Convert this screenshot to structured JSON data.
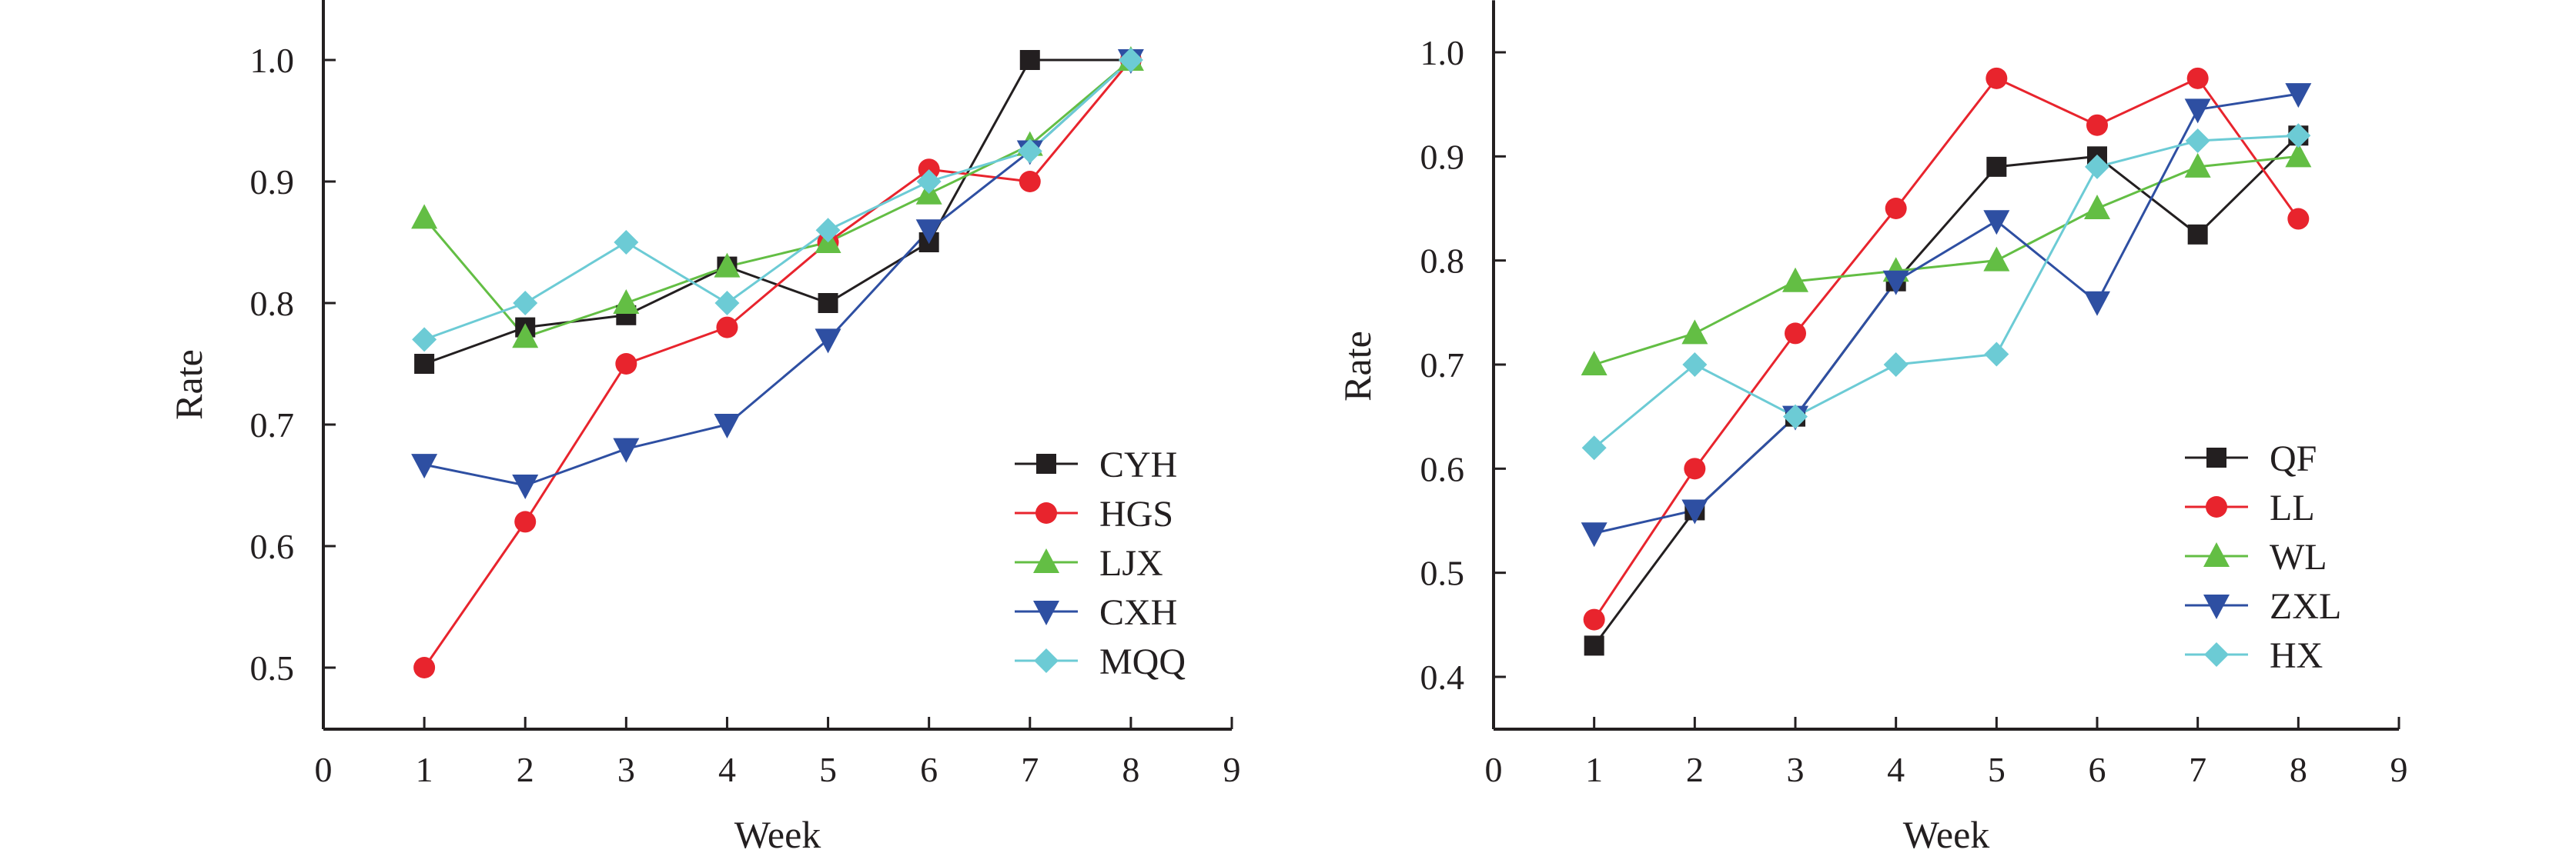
{
  "chart_data": [
    {
      "type": "line",
      "xlabel": "Week",
      "ylabel": "Rate",
      "xlim": [
        0,
        9
      ],
      "ylim": [
        0.45,
        1.05
      ],
      "xticks": [
        0,
        1,
        2,
        3,
        4,
        5,
        6,
        7,
        8,
        9
      ],
      "yticks": [
        0.5,
        0.6,
        0.7,
        0.8,
        0.9,
        1.0
      ],
      "xtick_labels": [
        "0",
        "1",
        "2",
        "3",
        "4",
        "5",
        "6",
        "7",
        "8",
        "9"
      ],
      "ytick_labels": [
        "0.5",
        "0.6",
        "0.7",
        "0.8",
        "0.9",
        "1.0"
      ],
      "grid": false,
      "legend_position": "bottom-right",
      "x": [
        1,
        2,
        3,
        4,
        5,
        6,
        7,
        8
      ],
      "series": [
        {
          "name": "CYH",
          "color": "#231f20",
          "marker": "square",
          "values": [
            0.75,
            0.78,
            0.79,
            0.83,
            0.8,
            0.85,
            1.0,
            1.0
          ]
        },
        {
          "name": "HGS",
          "color": "#e8242d",
          "marker": "circle",
          "values": [
            0.5,
            0.62,
            0.75,
            0.78,
            0.85,
            0.91,
            0.9,
            1.0
          ]
        },
        {
          "name": "LJX",
          "color": "#63be44",
          "marker": "triangle-up",
          "values": [
            0.87,
            0.772,
            0.8,
            0.83,
            0.85,
            0.89,
            0.93,
            1.0
          ]
        },
        {
          "name": "CXH",
          "color": "#2e4fa2",
          "marker": "triangle-down",
          "values": [
            0.667,
            0.65,
            0.68,
            0.7,
            0.77,
            0.86,
            0.925,
            1.0
          ]
        },
        {
          "name": "MQQ",
          "color": "#6ccbd5",
          "marker": "diamond",
          "values": [
            0.77,
            0.8,
            0.85,
            0.8,
            0.86,
            0.9,
            0.925,
            1.0
          ]
        }
      ]
    },
    {
      "type": "line",
      "xlabel": "Week",
      "ylabel": "Rate",
      "xlim": [
        0,
        9
      ],
      "ylim": [
        0.35,
        1.05
      ],
      "xticks": [
        0,
        1,
        2,
        3,
        4,
        5,
        6,
        7,
        8,
        9
      ],
      "yticks": [
        0.4,
        0.5,
        0.6,
        0.7,
        0.8,
        0.9,
        1.0
      ],
      "xtick_labels": [
        "0",
        "1",
        "2",
        "3",
        "4",
        "5",
        "6",
        "7",
        "8",
        "9"
      ],
      "ytick_labels": [
        "0.4",
        "0.5",
        "0.6",
        "0.7",
        "0.8",
        "0.9",
        "1.0"
      ],
      "grid": false,
      "legend_position": "bottom-right",
      "x": [
        1,
        2,
        3,
        4,
        5,
        6,
        7,
        8
      ],
      "series": [
        {
          "name": "QF",
          "color": "#231f20",
          "marker": "square",
          "values": [
            0.43,
            0.56,
            0.65,
            0.78,
            0.89,
            0.9,
            0.825,
            0.92
          ]
        },
        {
          "name": "LL",
          "color": "#e8242d",
          "marker": "circle",
          "values": [
            0.455,
            0.6,
            0.73,
            0.85,
            0.975,
            0.93,
            0.975,
            0.84
          ]
        },
        {
          "name": "WL",
          "color": "#63be44",
          "marker": "triangle-up",
          "values": [
            0.7,
            0.73,
            0.78,
            0.79,
            0.8,
            0.85,
            0.89,
            0.9
          ]
        },
        {
          "name": "ZXL",
          "color": "#2e4fa2",
          "marker": "triangle-down",
          "values": [
            0.538,
            0.56,
            0.65,
            0.78,
            0.838,
            0.76,
            0.945,
            0.96
          ]
        },
        {
          "name": "HX",
          "color": "#6ccbd5",
          "marker": "diamond",
          "values": [
            0.62,
            0.7,
            0.65,
            0.7,
            0.71,
            0.89,
            0.915,
            0.92
          ]
        }
      ]
    }
  ]
}
